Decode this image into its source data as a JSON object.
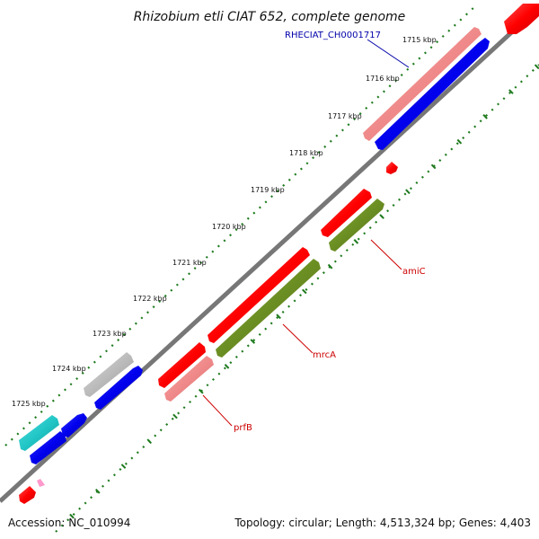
{
  "title": "Rhizobium etli CIAT 652, complete genome",
  "accession": "Accession: NC_010994",
  "topology": "Topology: circular; Length: 4,513,324 bp; Genes: 4,403",
  "ticks": [
    {
      "label": "1715 kbp"
    },
    {
      "label": "1716 kbp"
    },
    {
      "label": "1717 kbp"
    },
    {
      "label": "1718 kbp"
    },
    {
      "label": "1719 kbp"
    },
    {
      "label": "1720 kbp"
    },
    {
      "label": "1721 kbp"
    },
    {
      "label": "1722 kbp"
    },
    {
      "label": "1723 kbp"
    },
    {
      "label": "1724 kbp"
    },
    {
      "label": "1725 kbp"
    }
  ],
  "gene_labels": {
    "rheciat": "RHECIAT_CH0001717",
    "amic": "amiC",
    "mrca": "mrcA",
    "prfb": "prfB"
  },
  "colors": {
    "backbone": "#777777",
    "tick_dots": "#1e7a1e",
    "red": "#ff0000",
    "salmon": "#f08a8a",
    "blue": "#0000ee",
    "olive": "#6b8e23",
    "gray": "#bbbbbb",
    "cyan": "#22c6c6",
    "pink": "#ff99cc",
    "label_blue": "#0000aa",
    "label_red": "#cc0000"
  }
}
